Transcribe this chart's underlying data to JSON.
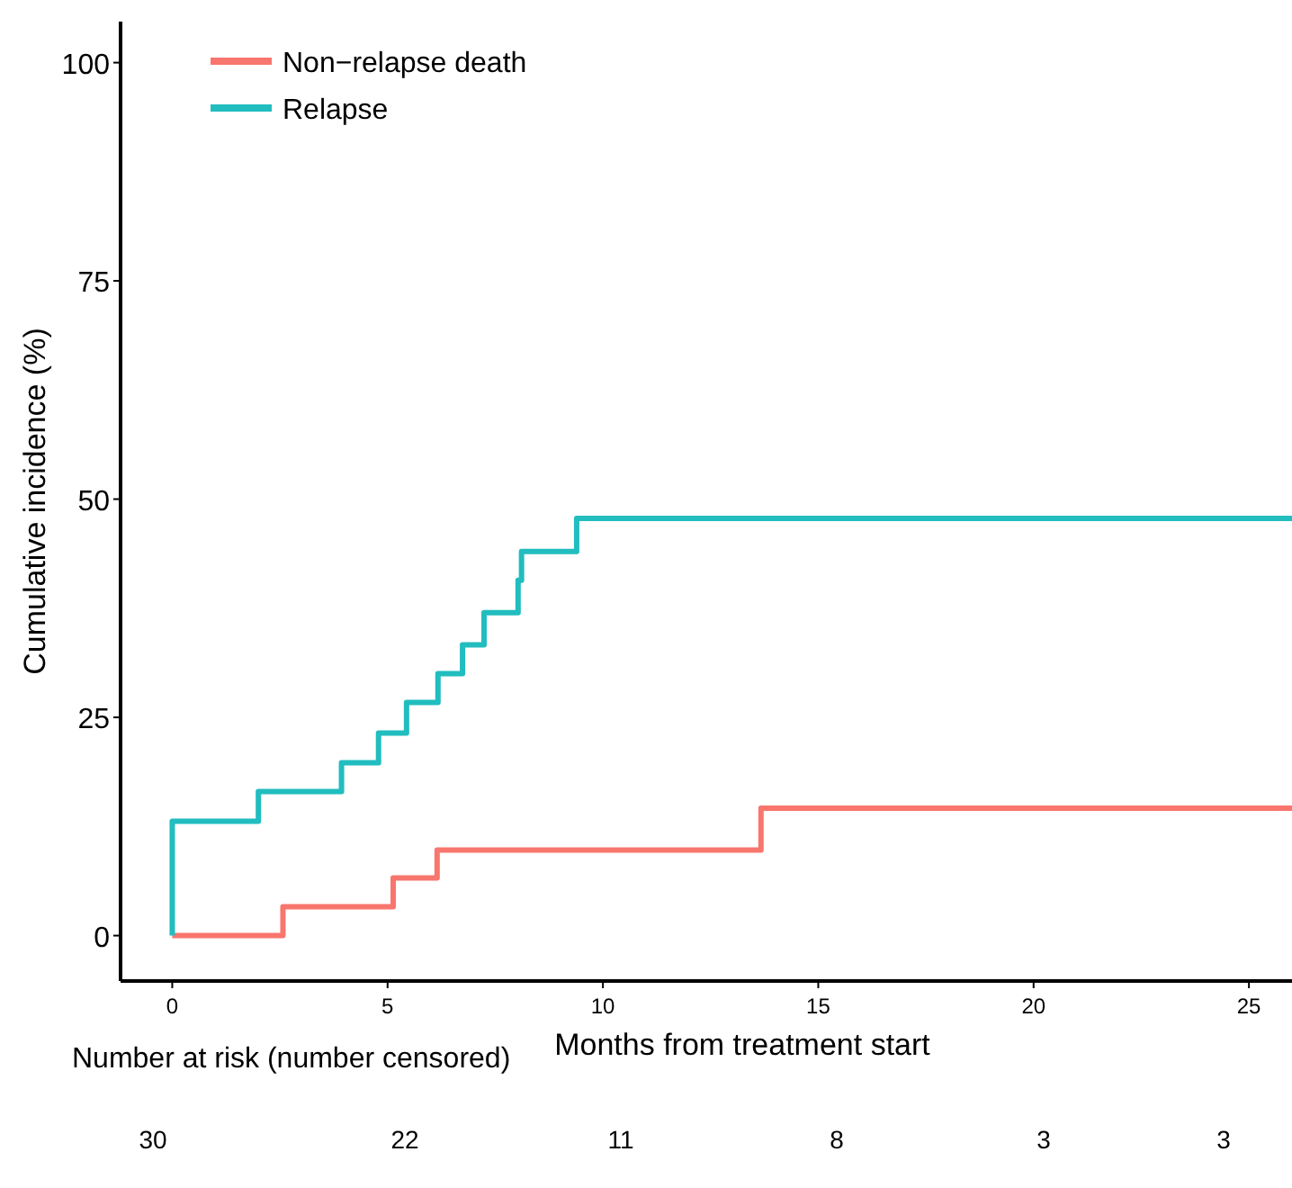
{
  "chart_data": {
    "type": "step",
    "xlabel": "Months from treatment start",
    "ylabel": "Cumulative incidence (%)",
    "xlim": [
      -1.2,
      26
    ],
    "ylim": [
      -5.2,
      104.7
    ],
    "xticks": [
      0,
      5,
      10,
      15,
      20,
      25
    ],
    "yticks": [
      0,
      25,
      50,
      75,
      100
    ],
    "grid": false,
    "legend": "top left",
    "line_style": "solid",
    "series": [
      {
        "name": "Non−relapse death",
        "color": "#f8766d",
        "x": [
          0,
          2.57,
          5.13,
          6.15,
          13.67,
          26
        ],
        "values": [
          0,
          3.3,
          6.6,
          9.8,
          14.6,
          14.6
        ]
      },
      {
        "name": "Relapse",
        "color": "#21bdbf",
        "x": [
          0,
          0,
          2.0,
          3.93,
          4.79,
          5.44,
          6.17,
          6.74,
          7.24,
          8.03,
          8.11,
          9.39,
          26
        ],
        "values": [
          0,
          13.1,
          16.5,
          19.8,
          23.2,
          26.7,
          30.0,
          33.3,
          37.0,
          40.7,
          44.0,
          47.8,
          47.8
        ]
      }
    ],
    "annotations": [
      "Number at risk (number censored)",
      "30",
      "22",
      "11",
      "8",
      "3",
      "3"
    ]
  }
}
